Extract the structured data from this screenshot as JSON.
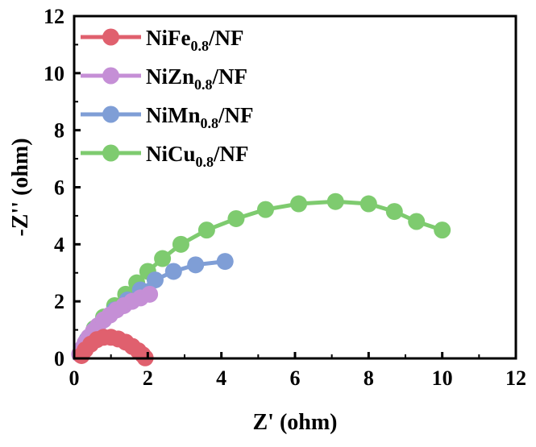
{
  "chart_data": {
    "type": "scatter",
    "title": "",
    "xlabel": "Z' (ohm)",
    "ylabel": "-Z'' (ohm)",
    "xlim": [
      0,
      12
    ],
    "ylim": [
      0,
      12
    ],
    "x_ticks": [
      "0",
      "2",
      "4",
      "6",
      "8",
      "10",
      "12"
    ],
    "y_ticks": [
      "0",
      "2",
      "4",
      "6",
      "8",
      "10",
      "12"
    ],
    "grid": false,
    "legend_position": "top-left",
    "series": [
      {
        "name_main": "NiFe",
        "name_sub": "0.8",
        "name_tail": "/NF",
        "color": "#e0606e",
        "x": [
          0.2,
          0.3,
          0.45,
          0.62,
          0.8,
          1.0,
          1.2,
          1.4,
          1.58,
          1.74,
          1.86,
          1.93
        ],
        "y": [
          0.1,
          0.3,
          0.5,
          0.66,
          0.74,
          0.74,
          0.68,
          0.57,
          0.42,
          0.27,
          0.13,
          0.02
        ]
      },
      {
        "name_main": "NiZn",
        "name_sub": "0.8",
        "name_tail": "/NF",
        "color": "#c58fd6",
        "x": [
          0.15,
          0.22,
          0.3,
          0.4,
          0.52,
          0.65,
          0.8,
          0.97,
          1.15,
          1.35,
          1.57,
          1.8,
          2.05
        ],
        "y": [
          0.15,
          0.35,
          0.55,
          0.75,
          0.95,
          1.15,
          1.35,
          1.52,
          1.7,
          1.85,
          2.0,
          2.12,
          2.25
        ]
      },
      {
        "name_main": "NiMn",
        "name_sub": "0.8",
        "name_tail": "/NF",
        "color": "#7f9ed6",
        "x": [
          0.2,
          0.35,
          0.55,
          0.8,
          1.1,
          1.45,
          1.8,
          2.2,
          2.7,
          3.3,
          4.1
        ],
        "y": [
          0.3,
          0.65,
          1.0,
          1.35,
          1.7,
          2.05,
          2.4,
          2.75,
          3.05,
          3.28,
          3.4
        ]
      },
      {
        "name_main": "NiCu",
        "name_sub": "0.8",
        "name_tail": "/NF",
        "color": "#7ecb6f",
        "x": [
          0.2,
          0.35,
          0.55,
          0.8,
          1.1,
          1.4,
          1.7,
          2.0,
          2.4,
          2.9,
          3.6,
          4.4,
          5.2,
          6.1,
          7.1,
          8.0,
          8.7,
          9.3,
          10.0
        ],
        "y": [
          0.3,
          0.65,
          1.05,
          1.45,
          1.85,
          2.25,
          2.65,
          3.05,
          3.5,
          4.0,
          4.5,
          4.9,
          5.22,
          5.42,
          5.5,
          5.42,
          5.15,
          4.8,
          4.5
        ]
      }
    ]
  }
}
